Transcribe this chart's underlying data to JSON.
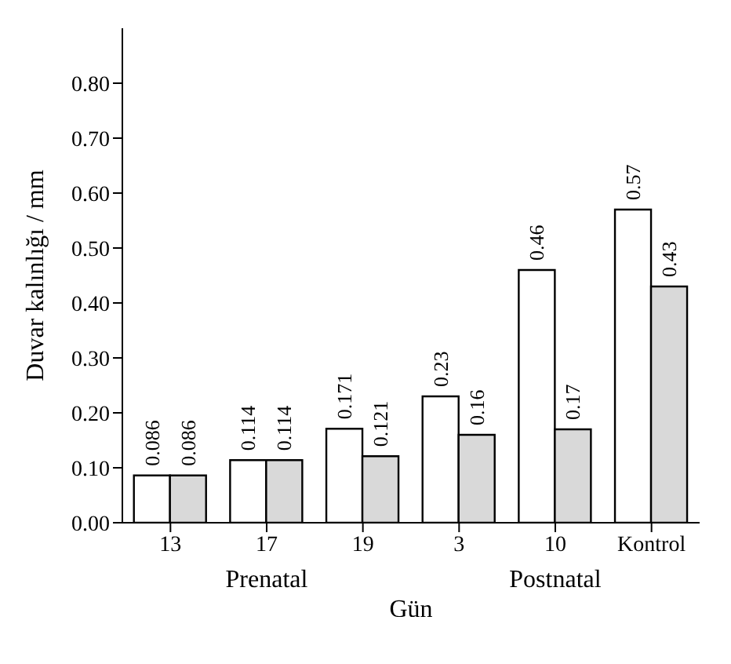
{
  "chart_data": {
    "type": "bar",
    "xlabel": "Gün",
    "ylabel": "Duvar kalınlığı / mm",
    "categories": [
      "13",
      "17",
      "19",
      "3",
      "10",
      "Kontrol"
    ],
    "series": [
      {
        "color": "#ffffff",
        "values": [
          0.086,
          0.114,
          0.171,
          0.23,
          0.46,
          0.57
        ]
      },
      {
        "color": "#d9d9d9",
        "values": [
          0.086,
          0.114,
          0.121,
          0.16,
          0.17,
          0.43
        ]
      }
    ],
    "ylim": [
      0,
      0.9
    ],
    "yticks": [
      {
        "value": 0,
        "label": "0.00"
      },
      {
        "value": 0.1,
        "label": "0.10"
      },
      {
        "value": 0.2,
        "label": "0.20"
      },
      {
        "value": 0.3,
        "label": "0.30"
      },
      {
        "value": 0.4,
        "label": "0.40"
      },
      {
        "value": 0.5,
        "label": "0.50"
      },
      {
        "value": 0.6,
        "label": "0.60"
      },
      {
        "value": 0.7,
        "label": "0.70"
      },
      {
        "value": 0.8,
        "label": "0.80"
      }
    ],
    "data_labels": true,
    "grid": false,
    "legend": false,
    "annotations": [
      "Prenatal",
      "Postnatal"
    ]
  }
}
